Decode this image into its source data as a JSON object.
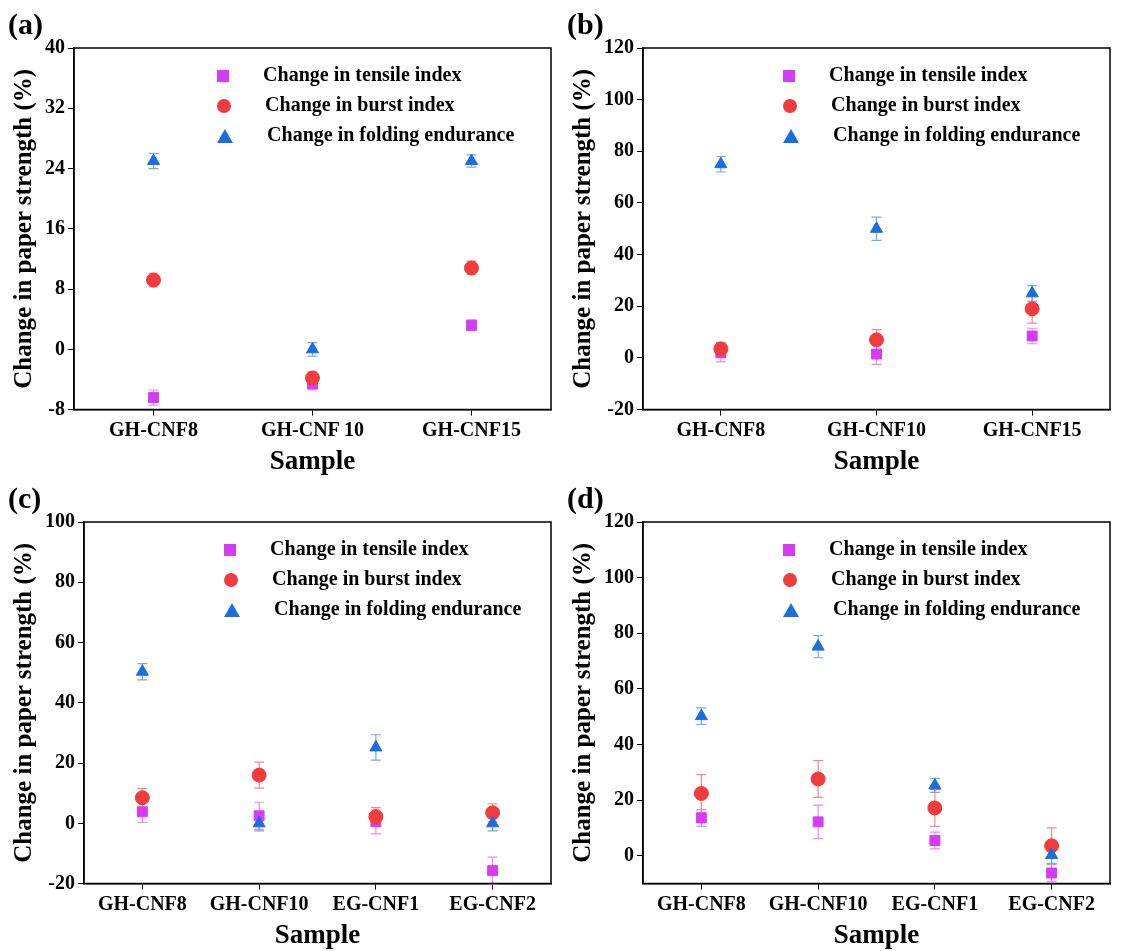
{
  "chart_data": [
    {
      "type": "scatter",
      "title": "(a)",
      "xlabel": "Sample",
      "ylabel": "Change in paper strength (%)",
      "categories": [
        "GH-CNF8",
        "GH-CNF 10",
        "GH-CNF15"
      ],
      "ylim": [
        -8,
        40
      ],
      "yticks": [
        -8,
        0,
        8,
        16,
        24,
        32,
        40
      ],
      "grid": false,
      "legend": "top",
      "series": [
        {
          "name": "Change in tensile index",
          "color": "#d63cf5",
          "marker": "square",
          "values": [
            -6.4,
            -4.6,
            3.2
          ],
          "errors": [
            1.0,
            0.8,
            0.7
          ]
        },
        {
          "name": "Change in burst index",
          "color": "#f03c3c",
          "marker": "circle",
          "values": [
            9.2,
            -3.8,
            10.8
          ],
          "errors": [
            0.9,
            0.8,
            0.9
          ]
        },
        {
          "name": "Change in folding endurance",
          "color": "#1a6ee0",
          "marker": "triangle",
          "values": [
            25,
            0,
            25
          ],
          "errors": [
            1.0,
            0.9,
            0.8
          ]
        }
      ]
    },
    {
      "type": "scatter",
      "title": "(b)",
      "xlabel": "Sample",
      "ylabel": "Change in paper strength (%)",
      "categories": [
        "GH-CNF8",
        "GH-CNF10",
        "GH-CNF15"
      ],
      "ylim": [
        -20,
        120
      ],
      "yticks": [
        -20,
        0,
        20,
        40,
        60,
        80,
        100,
        120
      ],
      "grid": false,
      "legend": "top",
      "series": [
        {
          "name": "Change in tensile index",
          "color": "#d63cf5",
          "marker": "square",
          "values": [
            2,
            1.5,
            8.5
          ],
          "errors": [
            3.5,
            4,
            3
          ]
        },
        {
          "name": "Change in burst index",
          "color": "#f03c3c",
          "marker": "circle",
          "values": [
            3.5,
            7,
            19
          ],
          "errors": [
            2.5,
            4,
            5.5
          ]
        },
        {
          "name": "Change in folding endurance",
          "color": "#1a6ee0",
          "marker": "triangle",
          "values": [
            75,
            50,
            25
          ],
          "errors": [
            3,
            4.5,
            3
          ]
        }
      ]
    },
    {
      "type": "scatter",
      "title": "(c)",
      "xlabel": "Sample",
      "ylabel": "Change in paper strength (%)",
      "categories": [
        "GH-CNF8",
        "GH-CNF10",
        "EG-CNF1",
        "EG-CNF2"
      ],
      "ylim": [
        -20,
        100
      ],
      "yticks": [
        -20,
        0,
        20,
        40,
        60,
        80,
        100
      ],
      "grid": false,
      "legend": "top",
      "series": [
        {
          "name": "Change in tensile index",
          "color": "#d63cf5",
          "marker": "square",
          "values": [
            3.8,
            2.5,
            0.5,
            -15.7
          ],
          "errors": [
            3.5,
            4.5,
            4,
            4.5
          ]
        },
        {
          "name": "Change in burst index",
          "color": "#f03c3c",
          "marker": "circle",
          "values": [
            8.5,
            16,
            2.2,
            3.5
          ],
          "errors": [
            3,
            4.3,
            3,
            3
          ]
        },
        {
          "name": "Change in folding endurance",
          "color": "#1a6ee0",
          "marker": "triangle",
          "values": [
            50.3,
            0,
            25.2,
            0
          ],
          "errors": [
            2.7,
            2.5,
            4.2,
            2.5
          ]
        }
      ]
    },
    {
      "type": "scatter",
      "title": "(d)",
      "xlabel": "Sample",
      "ylabel": "Change in paper strength (%)",
      "categories": [
        "GH-CNF8",
        "GH-CNF10",
        "EG-CNF1",
        "EG-CNF2"
      ],
      "ylim": [
        -10,
        120
      ],
      "yticks": [
        0,
        20,
        40,
        60,
        80,
        100,
        120
      ],
      "grid": false,
      "legend": "top",
      "series": [
        {
          "name": "Change in tensile index",
          "color": "#d63cf5",
          "marker": "square",
          "values": [
            13.6,
            12.2,
            5.5,
            -6.2
          ],
          "errors": [
            3,
            6,
            3,
            3
          ]
        },
        {
          "name": "Change in burst index",
          "color": "#f03c3c",
          "marker": "circle",
          "values": [
            22.4,
            27.6,
            17.2,
            3.6
          ],
          "errors": [
            6.8,
            6.6,
            6.6,
            6.4
          ]
        },
        {
          "name": "Change in folding endurance",
          "color": "#1a6ee0",
          "marker": "triangle",
          "values": [
            50.2,
            75.2,
            25.3,
            0.3
          ],
          "errors": [
            3,
            4,
            2.5,
            3
          ]
        }
      ]
    }
  ]
}
